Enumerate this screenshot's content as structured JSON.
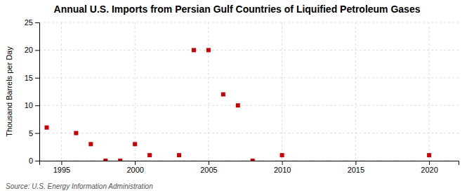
{
  "chart_data": {
    "type": "scatter",
    "title": "Annual U.S. Imports from Persian Gulf Countries of Liquified Petroleum Gases",
    "y_label": "Thousand Barrels per Day",
    "source": "Source: U.S. Energy Information Administration",
    "x": [
      1994,
      1996,
      1997,
      1998,
      1999,
      2000,
      2001,
      2003,
      2004,
      2005,
      2006,
      2007,
      2008,
      2010,
      2020
    ],
    "values": [
      6,
      5,
      3,
      0,
      0,
      3,
      1,
      1,
      20,
      20,
      12,
      10,
      0,
      1,
      1
    ],
    "color": "#cc0000",
    "marker": "square",
    "xlim": [
      1993.5,
      2022
    ],
    "ylim": [
      0,
      25
    ],
    "xticks": [
      1995,
      2000,
      2005,
      2010,
      2015,
      2020
    ],
    "yticks": [
      0,
      5,
      10,
      15,
      20,
      25
    ],
    "grid": true
  }
}
